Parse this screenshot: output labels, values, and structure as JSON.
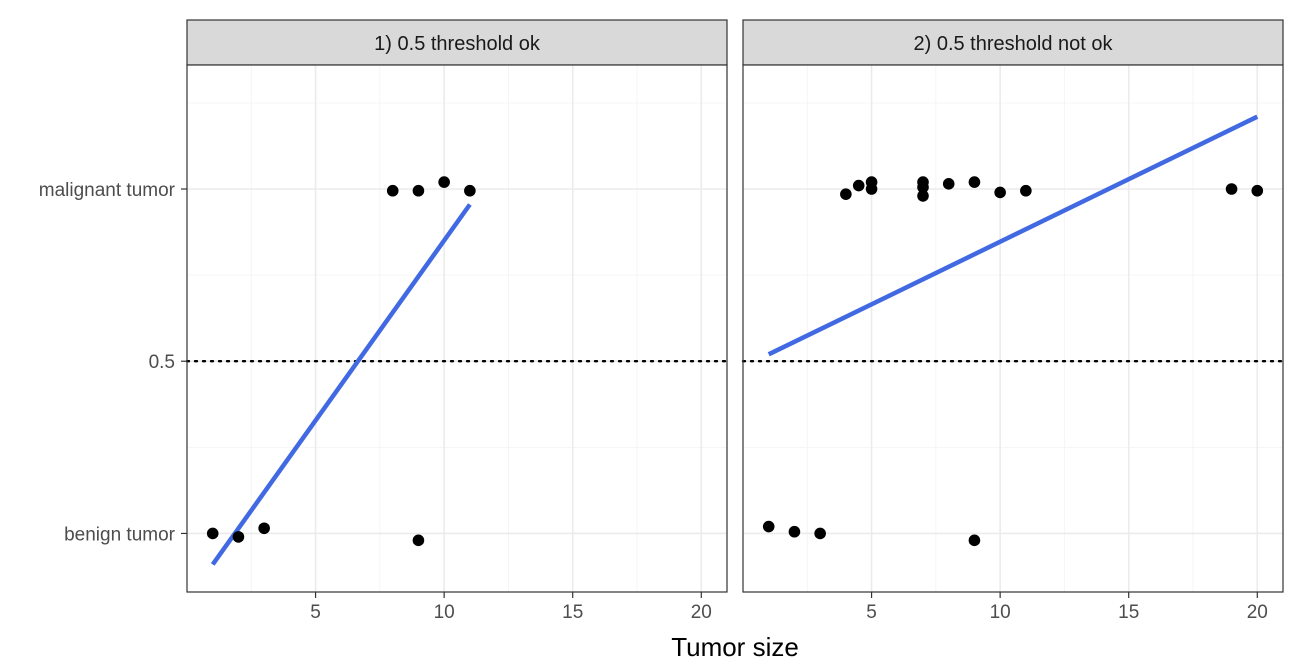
{
  "chart_data": {
    "type": "scatter",
    "xlabel": "Tumor size",
    "ylabel": "",
    "xlim": [
      0,
      21
    ],
    "ylim": [
      -0.17,
      1.36
    ],
    "x_ticks": [
      5,
      10,
      15,
      20
    ],
    "x_tick_labels": [
      "5",
      "10",
      "15",
      "20"
    ],
    "y_ticks": [
      0,
      0.5,
      1
    ],
    "y_tick_labels": [
      "benign tumor",
      "0.5",
      "malignant tumor"
    ],
    "grid": true,
    "reference_line": {
      "y": 0.5,
      "style": "dotted"
    },
    "colors": {
      "fit_line": "#4169e1",
      "points": "#000000"
    },
    "panels": [
      {
        "title": "1) 0.5 threshold ok",
        "points": [
          {
            "x": 1,
            "y": 0.0
          },
          {
            "x": 2,
            "y": -0.01
          },
          {
            "x": 3,
            "y": 0.015
          },
          {
            "x": 9,
            "y": -0.02
          },
          {
            "x": 8,
            "y": 0.995
          },
          {
            "x": 9,
            "y": 0.995
          },
          {
            "x": 10,
            "y": 1.02
          },
          {
            "x": 11,
            "y": 0.995
          }
        ],
        "fit_line": {
          "x": [
            1,
            11
          ],
          "y": [
            -0.09,
            0.955
          ]
        }
      },
      {
        "title": "2) 0.5 threshold not ok",
        "points": [
          {
            "x": 1,
            "y": 0.02
          },
          {
            "x": 2,
            "y": 0.005
          },
          {
            "x": 3,
            "y": 0.0
          },
          {
            "x": 9,
            "y": -0.02
          },
          {
            "x": 4,
            "y": 0.985
          },
          {
            "x": 4.5,
            "y": 1.01
          },
          {
            "x": 5,
            "y": 1.02
          },
          {
            "x": 5,
            "y": 1.0
          },
          {
            "x": 7,
            "y": 1.02
          },
          {
            "x": 7,
            "y": 1.005
          },
          {
            "x": 7,
            "y": 0.98
          },
          {
            "x": 8,
            "y": 1.015
          },
          {
            "x": 9,
            "y": 1.02
          },
          {
            "x": 10,
            "y": 0.99
          },
          {
            "x": 11,
            "y": 0.995
          },
          {
            "x": 19,
            "y": 1.0
          },
          {
            "x": 20,
            "y": 0.995
          }
        ],
        "fit_line": {
          "x": [
            1,
            20
          ],
          "y": [
            0.52,
            1.21
          ]
        }
      }
    ]
  }
}
